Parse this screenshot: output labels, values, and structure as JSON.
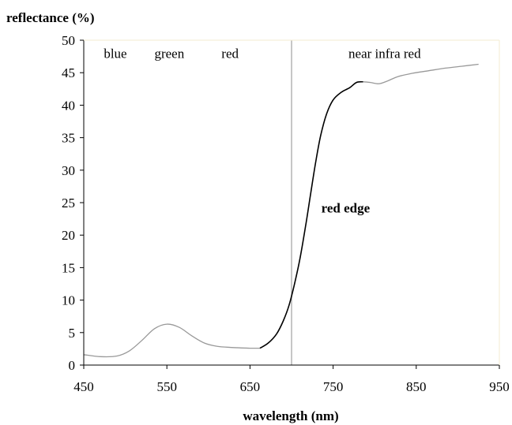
{
  "chart_data": {
    "type": "line",
    "title": "",
    "ylabel": "reflectance (%)",
    "xlabel": "wavelength (nm)",
    "xlim": [
      450,
      950
    ],
    "ylim": [
      0,
      50
    ],
    "x_ticks": [
      450,
      550,
      650,
      750,
      850,
      950
    ],
    "y_ticks": [
      0,
      5,
      10,
      15,
      20,
      25,
      30,
      35,
      40,
      45,
      50
    ],
    "grid": false,
    "legend": "none",
    "band_labels": [
      {
        "text": "blue",
        "x": 488,
        "y": 48
      },
      {
        "text": "green",
        "x": 553,
        "y": 48
      },
      {
        "text": "red",
        "x": 626,
        "y": 48
      },
      {
        "text": "near infra red",
        "x": 812,
        "y": 48
      }
    ],
    "annotations": [
      {
        "text": "red edge",
        "x": 765,
        "y": 24.2
      }
    ],
    "divider": {
      "x": 700
    },
    "series": [
      {
        "color": "#999999",
        "points": [
          [
            450,
            1.6
          ],
          [
            470,
            1.3
          ],
          [
            490,
            1.4
          ],
          [
            505,
            2.2
          ],
          [
            520,
            3.8
          ],
          [
            535,
            5.6
          ],
          [
            550,
            6.3
          ],
          [
            565,
            5.8
          ],
          [
            580,
            4.5
          ],
          [
            595,
            3.4
          ],
          [
            610,
            2.9
          ],
          [
            630,
            2.7
          ],
          [
            650,
            2.6
          ],
          [
            662,
            2.6
          ]
        ]
      },
      {
        "color": "#000000",
        "points": [
          [
            662,
            2.6
          ],
          [
            672,
            3.4
          ],
          [
            682,
            4.8
          ],
          [
            690,
            6.8
          ],
          [
            697,
            9.2
          ],
          [
            703,
            12.2
          ],
          [
            710,
            16.3
          ],
          [
            717,
            21.5
          ],
          [
            723,
            26.4
          ],
          [
            729,
            31.2
          ],
          [
            735,
            35.3
          ],
          [
            742,
            38.6
          ],
          [
            750,
            40.8
          ],
          [
            760,
            42.0
          ],
          [
            770,
            42.7
          ],
          [
            778,
            43.5
          ],
          [
            786,
            43.6
          ]
        ]
      },
      {
        "color": "#999999",
        "points": [
          [
            786,
            43.6
          ],
          [
            795,
            43.5
          ],
          [
            805,
            43.3
          ],
          [
            815,
            43.7
          ],
          [
            828,
            44.4
          ],
          [
            845,
            44.9
          ],
          [
            865,
            45.3
          ],
          [
            885,
            45.7
          ],
          [
            905,
            46.0
          ],
          [
            925,
            46.3
          ]
        ]
      }
    ]
  }
}
